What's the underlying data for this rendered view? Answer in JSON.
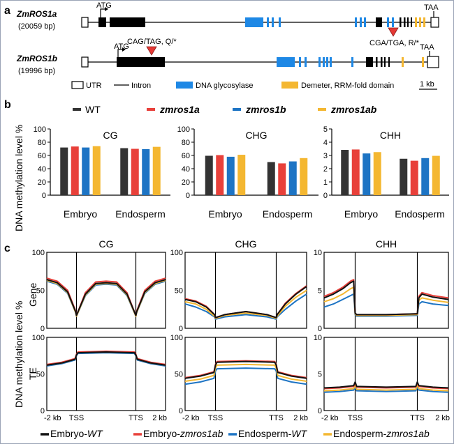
{
  "panel_labels": {
    "a": "a",
    "b": "b",
    "c": "c"
  },
  "genes": [
    {
      "name": "ZmROS1a",
      "size": "(20059 bp)",
      "start": "ATG",
      "stop": "TAA",
      "mutation": "CGA/TGA, R/*"
    },
    {
      "name": "ZmROS1b",
      "size": "(19996 bp)",
      "start": "ATG",
      "stop": "TAA",
      "mutation": "CAG/TAG, Q/*"
    }
  ],
  "gene_legend": {
    "utr": "UTR",
    "intron": "Intron",
    "glycosylase": "DNA glycosylase",
    "demeter": "Demeter, RRM-fold domain",
    "scale": "1 kb"
  },
  "colors": {
    "wt": "#333333",
    "zmros1a": "#e8403a",
    "zmros1b": "#1d74c4",
    "zmros1ab": "#f4b731",
    "glycosylase": "#1e88e5",
    "demeter": "#f4b731"
  },
  "bar_legend": [
    "WT",
    "zmros1a",
    "zmros1b",
    "zmros1ab"
  ],
  "bar_ylabel": "DNA methylation level %",
  "chart_data": [
    {
      "type": "bar",
      "title": "CG",
      "categories": [
        "Embryo",
        "Endosperm"
      ],
      "ylim": [
        0,
        100
      ],
      "yticks": [
        0,
        20,
        40,
        60,
        80,
        100
      ],
      "series": [
        {
          "name": "WT",
          "values": [
            72,
            71
          ]
        },
        {
          "name": "zmros1a",
          "values": [
            73.5,
            70
          ]
        },
        {
          "name": "zmros1b",
          "values": [
            72,
            69.5
          ]
        },
        {
          "name": "zmros1ab",
          "values": [
            74,
            73
          ]
        }
      ]
    },
    {
      "type": "bar",
      "title": "CHG",
      "categories": [
        "Embryo",
        "Endosperm"
      ],
      "ylim": [
        0,
        100
      ],
      "yticks": [
        0,
        20,
        40,
        60,
        80,
        100
      ],
      "series": [
        {
          "name": "WT",
          "values": [
            59.5,
            50
          ]
        },
        {
          "name": "zmros1a",
          "values": [
            60.5,
            48
          ]
        },
        {
          "name": "zmros1b",
          "values": [
            58,
            51
          ]
        },
        {
          "name": "zmros1ab",
          "values": [
            61,
            56
          ]
        }
      ]
    },
    {
      "type": "bar",
      "title": "CHH",
      "categories": [
        "Embryo",
        "Endosperm"
      ],
      "ylim": [
        0,
        5
      ],
      "yticks": [
        0,
        1,
        2,
        3,
        4,
        5
      ],
      "series": [
        {
          "name": "WT",
          "values": [
            3.42,
            2.75
          ]
        },
        {
          "name": "zmros1a",
          "values": [
            3.45,
            2.6
          ]
        },
        {
          "name": "zmros1b",
          "values": [
            3.15,
            2.8
          ]
        },
        {
          "name": "zmros1ab",
          "values": [
            3.25,
            2.97
          ]
        }
      ]
    },
    {
      "type": "line",
      "title": "CG",
      "row": "Gene",
      "ylim": [
        0,
        100
      ],
      "yticks": [
        0,
        50,
        100
      ],
      "x": [
        0,
        0.35,
        0.7,
        0.97,
        1,
        1.3,
        1.65,
        2,
        2.35,
        2.7,
        3,
        3.03,
        3.3,
        3.65,
        4
      ],
      "series": [
        {
          "name": "Embryo-WT",
          "values": [
            64,
            60,
            48,
            22,
            17,
            45,
            59,
            60,
            59,
            45,
            17,
            22,
            48,
            60,
            64
          ]
        },
        {
          "name": "Embryo-zmros1ab",
          "values": [
            66,
            62,
            50,
            23,
            17,
            47,
            61,
            62,
            61,
            47,
            17,
            23,
            50,
            62,
            66
          ]
        },
        {
          "name": "Endosperm-WT",
          "values": [
            62,
            58,
            46,
            21,
            16,
            43,
            57,
            58,
            57,
            43,
            16,
            21,
            46,
            58,
            62
          ]
        },
        {
          "name": "Endosperm-zmros1ab",
          "values": [
            63,
            59,
            47,
            21,
            16,
            44,
            58,
            59,
            58,
            44,
            16,
            21,
            47,
            59,
            63
          ]
        }
      ]
    },
    {
      "type": "line",
      "title": "CHG",
      "row": "Gene",
      "ylim": [
        0,
        100
      ],
      "yticks": [
        0,
        50,
        100
      ],
      "x": [
        0,
        0.35,
        0.7,
        0.97,
        1,
        1.3,
        2,
        2.7,
        3,
        3.03,
        3.3,
        3.65,
        4
      ],
      "series": [
        {
          "name": "Embryo-WT",
          "values": [
            38,
            35,
            28,
            18,
            14,
            18,
            22,
            18,
            14,
            18,
            32,
            45,
            55
          ]
        },
        {
          "name": "Embryo-zmros1ab",
          "values": [
            39,
            36,
            29,
            18,
            14,
            18,
            22,
            18,
            14,
            18,
            33,
            46,
            56
          ]
        },
        {
          "name": "Endosperm-WT",
          "values": [
            32,
            28,
            22,
            15,
            12,
            15,
            18,
            15,
            12,
            15,
            25,
            36,
            45
          ]
        },
        {
          "name": "Endosperm-zmros1ab",
          "values": [
            35,
            32,
            25,
            16,
            13,
            17,
            20,
            17,
            13,
            16,
            29,
            41,
            50
          ]
        }
      ]
    },
    {
      "type": "line",
      "title": "CHH",
      "row": "Gene",
      "ylim": [
        0,
        10
      ],
      "yticks": [
        0,
        5,
        10
      ],
      "x": [
        0,
        0.3,
        0.6,
        0.85,
        0.95,
        1,
        1.05,
        2,
        2.95,
        3,
        3.05,
        3.15,
        3.5,
        4
      ],
      "series": [
        {
          "name": "Embryo-WT",
          "values": [
            4.0,
            4.5,
            5.2,
            6.0,
            6.2,
            2.0,
            1.8,
            1.8,
            1.9,
            1.9,
            4.0,
            4.5,
            4.1,
            3.8
          ]
        },
        {
          "name": "Embryo-zmros1ab",
          "values": [
            4.2,
            4.7,
            5.4,
            6.2,
            6.4,
            2.0,
            1.8,
            1.8,
            1.9,
            1.9,
            4.2,
            4.7,
            4.3,
            4.0
          ]
        },
        {
          "name": "Endosperm-WT",
          "values": [
            2.8,
            3.2,
            3.8,
            4.3,
            4.5,
            1.8,
            1.6,
            1.6,
            1.7,
            1.7,
            3.2,
            3.5,
            3.2,
            3.0
          ]
        },
        {
          "name": "Endosperm-zmros1ab",
          "values": [
            3.5,
            3.9,
            4.5,
            5.2,
            5.4,
            1.9,
            1.7,
            1.7,
            1.8,
            1.8,
            3.7,
            4.0,
            3.7,
            3.4
          ]
        }
      ]
    },
    {
      "type": "line",
      "title": "CG",
      "row": "TE",
      "ylim": [
        0,
        100
      ],
      "yticks": [
        0,
        50,
        100
      ],
      "x": [
        0,
        0.5,
        0.95,
        1,
        1.05,
        2,
        2.95,
        3,
        3.05,
        3.5,
        4
      ],
      "series": [
        {
          "name": "Embryo-WT",
          "values": [
            62,
            65,
            70,
            76,
            79,
            80,
            79,
            76,
            70,
            65,
            62
          ]
        },
        {
          "name": "Embryo-zmros1ab",
          "values": [
            63,
            66,
            71,
            77,
            80,
            81,
            80,
            77,
            71,
            66,
            63
          ]
        },
        {
          "name": "Endosperm-WT",
          "values": [
            61,
            64,
            69,
            75,
            78,
            79,
            78,
            75,
            69,
            64,
            61
          ]
        },
        {
          "name": "Endosperm-zmros1ab",
          "values": [
            62,
            65,
            70,
            76,
            79,
            80,
            79,
            76,
            70,
            65,
            62
          ]
        }
      ]
    },
    {
      "type": "line",
      "title": "CHG",
      "row": "TE",
      "ylim": [
        0,
        100
      ],
      "yticks": [
        0,
        50,
        100
      ],
      "x": [
        0,
        0.5,
        0.95,
        1,
        1.05,
        2,
        2.95,
        3,
        3.05,
        3.5,
        4
      ],
      "series": [
        {
          "name": "Embryo-WT",
          "values": [
            44,
            47,
            52,
            62,
            66,
            67,
            66,
            62,
            52,
            47,
            44
          ]
        },
        {
          "name": "Embryo-zmros1ab",
          "values": [
            45,
            48,
            53,
            63,
            67,
            68,
            67,
            63,
            53,
            48,
            45
          ]
        },
        {
          "name": "Endosperm-WT",
          "values": [
            36,
            39,
            44,
            54,
            57,
            58,
            57,
            54,
            44,
            39,
            36
          ]
        },
        {
          "name": "Endosperm-zmros1ab",
          "values": [
            40,
            43,
            48,
            58,
            62,
            63,
            62,
            58,
            48,
            43,
            40
          ]
        }
      ]
    },
    {
      "type": "line",
      "title": "CHH",
      "row": "TE",
      "ylim": [
        0,
        10
      ],
      "yticks": [
        0,
        5,
        10
      ],
      "x": [
        0,
        0.5,
        0.95,
        1,
        1.05,
        2,
        2.95,
        3,
        3.05,
        3.5,
        4
      ],
      "series": [
        {
          "name": "Embryo-WT",
          "values": [
            3.1,
            3.2,
            3.4,
            3.9,
            3.3,
            3.2,
            3.3,
            3.9,
            3.4,
            3.2,
            3.1
          ]
        },
        {
          "name": "Embryo-zmros1ab",
          "values": [
            3.0,
            3.1,
            3.3,
            3.8,
            3.2,
            3.1,
            3.2,
            3.8,
            3.3,
            3.1,
            3.0
          ]
        },
        {
          "name": "Endosperm-WT",
          "values": [
            2.5,
            2.6,
            2.8,
            3.2,
            2.7,
            2.6,
            2.7,
            3.2,
            2.8,
            2.6,
            2.5
          ]
        },
        {
          "name": "Endosperm-zmros1ab",
          "values": [
            2.7,
            2.8,
            3.0,
            3.5,
            2.9,
            2.8,
            2.9,
            3.5,
            3.0,
            2.8,
            2.7
          ]
        }
      ]
    }
  ],
  "line_xticks": [
    "-2 kb",
    "TSS",
    "TTS",
    "2 kb"
  ],
  "line_row_labels": [
    "Gene",
    "TE"
  ],
  "line_ylabel": "DNA methylation level %",
  "line_legend": [
    {
      "prefix": "Embryo-",
      "name": "WT"
    },
    {
      "prefix": "Embryo-",
      "name": "zmros1ab"
    },
    {
      "prefix": "Endosperm-",
      "name": "WT"
    },
    {
      "prefix": "Endosperm-",
      "name": "zmros1ab"
    }
  ],
  "line_colors": [
    "#111111",
    "#e8403a",
    "#1d74c4",
    "#f4b731"
  ]
}
